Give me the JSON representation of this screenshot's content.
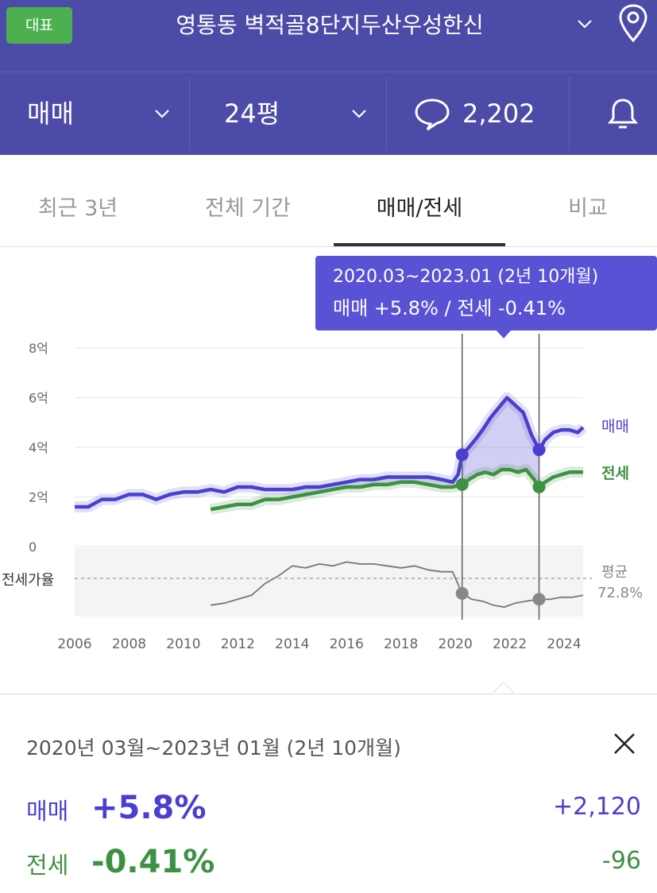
{
  "header": {
    "badge": "대표",
    "title": "영통동 벽적골8단지두산우성한신"
  },
  "subbar": {
    "trade_type": "매매",
    "area": "24평",
    "comment_count": "2,202"
  },
  "tabs": [
    {
      "label": "최근 3년",
      "active": false
    },
    {
      "label": "전체 기간",
      "active": false
    },
    {
      "label": "매매/전세",
      "active": true
    },
    {
      "label": "비교",
      "active": false
    }
  ],
  "tooltip": {
    "line1": "2020.03~2023.01 (2년 10개월)",
    "line2": "매매 +5.8%  /  전세 -0.41%"
  },
  "chart_data": {
    "type": "line",
    "y_unit": "억",
    "ylim": [
      0,
      8
    ],
    "y_ticks": [
      {
        "value": 8,
        "label": "8억"
      },
      {
        "value": 6,
        "label": "6억"
      },
      {
        "value": 4,
        "label": "4억"
      },
      {
        "value": 2,
        "label": "2억"
      },
      {
        "value": 0,
        "label": "0"
      }
    ],
    "x_ticks": [
      "2006",
      "2008",
      "2010",
      "2012",
      "2014",
      "2016",
      "2018",
      "2020",
      "2022",
      "2024"
    ],
    "xlim": [
      2006,
      2024.7
    ],
    "series": [
      {
        "name": "매매",
        "color": "#4a3fcf",
        "x": [
          2006.0,
          2006.5,
          2007.0,
          2007.5,
          2008.0,
          2008.5,
          2009.0,
          2009.5,
          2010.0,
          2010.5,
          2011.0,
          2011.5,
          2012.0,
          2012.5,
          2013.0,
          2013.5,
          2014.0,
          2014.5,
          2015.0,
          2015.5,
          2016.0,
          2016.5,
          2017.0,
          2017.5,
          2018.0,
          2018.5,
          2019.0,
          2019.5,
          2019.9,
          2020.1,
          2020.25,
          2020.5,
          2020.8,
          2021.0,
          2021.3,
          2021.6,
          2021.9,
          2022.2,
          2022.5,
          2022.8,
          2023.08,
          2023.3,
          2023.6,
          2023.9,
          2024.2,
          2024.5,
          2024.7
        ],
        "values": [
          1.6,
          1.6,
          1.9,
          1.9,
          2.1,
          2.1,
          1.9,
          2.1,
          2.2,
          2.2,
          2.3,
          2.2,
          2.4,
          2.4,
          2.3,
          2.3,
          2.3,
          2.4,
          2.4,
          2.5,
          2.6,
          2.7,
          2.7,
          2.8,
          2.8,
          2.8,
          2.8,
          2.7,
          2.6,
          2.9,
          3.7,
          4.0,
          4.4,
          4.7,
          5.2,
          5.6,
          6.0,
          5.7,
          5.4,
          4.5,
          3.9,
          4.3,
          4.6,
          4.7,
          4.7,
          4.6,
          4.8
        ]
      },
      {
        "name": "전세",
        "color": "#3e9142",
        "x": [
          2011.0,
          2011.5,
          2012.0,
          2012.5,
          2013.0,
          2013.5,
          2014.0,
          2014.5,
          2015.0,
          2015.5,
          2016.0,
          2016.5,
          2017.0,
          2017.5,
          2018.0,
          2018.5,
          2019.0,
          2019.5,
          2019.9,
          2020.25,
          2020.5,
          2020.8,
          2021.1,
          2021.4,
          2021.7,
          2022.0,
          2022.3,
          2022.6,
          2022.9,
          2023.08,
          2023.3,
          2023.6,
          2023.9,
          2024.2,
          2024.5,
          2024.7
        ],
        "values": [
          1.5,
          1.6,
          1.7,
          1.7,
          1.9,
          1.9,
          2.0,
          2.1,
          2.2,
          2.3,
          2.4,
          2.4,
          2.5,
          2.5,
          2.6,
          2.6,
          2.5,
          2.4,
          2.4,
          2.5,
          2.7,
          2.9,
          3.0,
          2.9,
          3.1,
          3.1,
          3.0,
          3.1,
          2.7,
          2.4,
          2.6,
          2.8,
          2.9,
          3.0,
          3.0,
          3.0
        ]
      },
      {
        "name": "전세가율",
        "color": "#777777",
        "x": [
          2011.0,
          2011.5,
          2012.0,
          2012.5,
          2013.0,
          2013.5,
          2014.0,
          2014.5,
          2015.0,
          2015.5,
          2016.0,
          2016.5,
          2017.0,
          2017.5,
          2018.0,
          2018.5,
          2019.0,
          2019.5,
          2019.9,
          2020.25,
          2020.6,
          2021.0,
          2021.4,
          2021.8,
          2022.2,
          2022.6,
          2023.08,
          2023.5,
          2023.9,
          2024.3,
          2024.7
        ],
        "values": [
          65,
          66,
          68,
          70,
          76,
          80,
          85,
          84,
          86,
          85,
          87,
          86,
          86,
          85,
          84,
          85,
          83,
          82,
          82,
          71,
          68,
          67,
          65,
          64,
          66,
          67,
          68,
          68,
          69,
          69,
          70
        ]
      }
    ],
    "ratio_avg_label": "평균",
    "ratio_avg_value": "72.8%",
    "ratio_label": "전세가율",
    "selection": {
      "start": 2020.25,
      "end": 2023.08
    },
    "legend": [
      "매매",
      "전세"
    ],
    "legend_placement": "right"
  },
  "summary": {
    "period": "2020년 03월~2023년 01월 (2년 10개월)",
    "sale_label": "매매",
    "sale_pct": "+5.8%",
    "sale_amount": "+2,120",
    "jeonse_label": "전세",
    "jeonse_pct": "-0.41%",
    "jeonse_amount": "-96"
  },
  "colors": {
    "header_bg": "#4d4ba8",
    "sale": "#4a3fcf",
    "jeonse": "#3e9142",
    "badge": "#4caf50"
  }
}
